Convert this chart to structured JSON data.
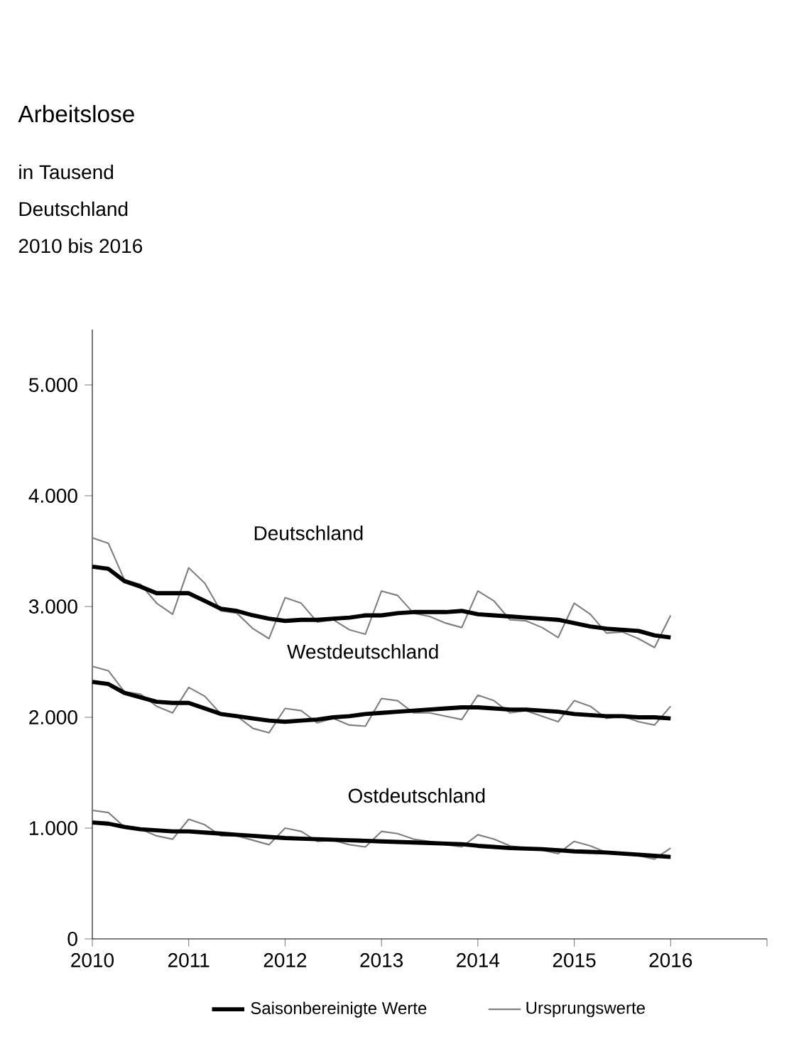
{
  "chart_data": {
    "type": "line",
    "title": "Arbeitslose",
    "subtitle": "in Tausend",
    "annotations": [
      "Deutschland",
      "2010 bis 2016",
      "Deutschland",
      "Westdeutschland",
      "Ostdeutschland"
    ],
    "x": [
      2010,
      2010.167,
      2010.333,
      2010.5,
      2010.667,
      2010.833,
      2011,
      2011.167,
      2011.333,
      2011.5,
      2011.667,
      2011.833,
      2012,
      2012.167,
      2012.333,
      2012.5,
      2012.667,
      2012.833,
      2013,
      2013.167,
      2013.333,
      2013.5,
      2013.667,
      2013.833,
      2014,
      2014.167,
      2014.333,
      2014.5,
      2014.667,
      2014.833,
      2015,
      2015.167,
      2015.333,
      2015.5,
      2015.667,
      2015.833,
      2016
    ],
    "series": [
      {
        "name": "Saisonbereinigte Werte",
        "color": "#000000",
        "values": [
          3360,
          3340,
          3230,
          3180,
          3120,
          3120,
          3120,
          3050,
          2980,
          2960,
          2920,
          2890,
          2870,
          2880,
          2880,
          2890,
          2900,
          2920,
          2920,
          2940,
          2950,
          2950,
          2950,
          2960,
          2930,
          2920,
          2910,
          2900,
          2890,
          2880,
          2850,
          2820,
          2800,
          2790,
          2780,
          2740,
          2720
        ]
      },
      {
        "name": "Ursprungswerte",
        "color": "#808080",
        "values": [
          3620,
          3570,
          3240,
          3200,
          3030,
          2930,
          3350,
          3210,
          2960,
          2940,
          2800,
          2710,
          3080,
          3030,
          2860,
          2880,
          2790,
          2750,
          3140,
          3100,
          2940,
          2910,
          2850,
          2810,
          3140,
          3050,
          2880,
          2870,
          2810,
          2720,
          3030,
          2930,
          2760,
          2770,
          2710,
          2630,
          2920
        ]
      },
      {
        "color": "#000000",
        "values": [
          2320,
          2300,
          2220,
          2180,
          2140,
          2130,
          2130,
          2080,
          2030,
          2010,
          1990,
          1970,
          1960,
          1970,
          1980,
          2000,
          2010,
          2030,
          2040,
          2050,
          2060,
          2070,
          2080,
          2090,
          2090,
          2080,
          2070,
          2070,
          2060,
          2050,
          2030,
          2020,
          2010,
          2010,
          2000,
          2000,
          1990
        ]
      },
      {
        "color": "#808080",
        "values": [
          2460,
          2420,
          2230,
          2210,
          2100,
          2040,
          2270,
          2190,
          2030,
          2010,
          1900,
          1860,
          2080,
          2060,
          1950,
          1990,
          1930,
          1920,
          2170,
          2150,
          2040,
          2040,
          2010,
          1980,
          2200,
          2150,
          2040,
          2060,
          2010,
          1960,
          2150,
          2100,
          1990,
          2010,
          1960,
          1930,
          2100
        ]
      },
      {
        "color": "#000000",
        "values": [
          1050,
          1040,
          1010,
          990,
          980,
          970,
          970,
          960,
          950,
          940,
          930,
          920,
          910,
          905,
          900,
          895,
          890,
          885,
          880,
          875,
          870,
          865,
          860,
          855,
          840,
          830,
          820,
          815,
          810,
          800,
          790,
          785,
          780,
          770,
          760,
          750,
          740
        ]
      },
      {
        "color": "#808080",
        "values": [
          1160,
          1140,
          1010,
          990,
          930,
          900,
          1080,
          1030,
          930,
          930,
          890,
          850,
          1000,
          970,
          880,
          890,
          850,
          830,
          970,
          950,
          900,
          880,
          850,
          830,
          940,
          900,
          840,
          820,
          800,
          770,
          880,
          840,
          780,
          770,
          750,
          720,
          820
        ]
      }
    ],
    "xlim": [
      2010,
      2017
    ],
    "xticks": [
      2010,
      2011,
      2012,
      2013,
      2014,
      2015,
      2016,
      {
        "value": 2017,
        "label": null
      }
    ],
    "ylim": [
      0,
      5500
    ],
    "yticks": [
      0,
      {
        "value": 1000,
        "label": "1.000"
      },
      {
        "value": 2000,
        "label": "2.000"
      },
      {
        "value": 3000,
        "label": "3.000"
      },
      {
        "value": 4000,
        "label": "4.000"
      },
      {
        "value": 5000,
        "label": "5.000"
      }
    ],
    "grid": false,
    "legend": "bottom"
  }
}
